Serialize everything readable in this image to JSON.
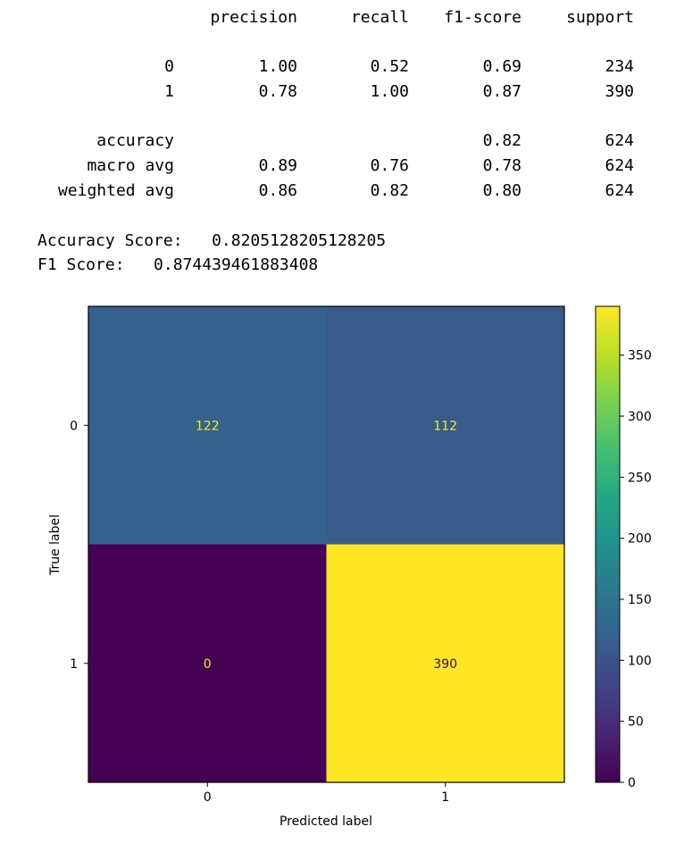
{
  "report": {
    "headers": [
      "precision",
      "recall",
      "f1-score",
      "support"
    ],
    "rows": [
      {
        "label": "0",
        "precision": "1.00",
        "recall": "0.52",
        "f1": "0.69",
        "support": "234"
      },
      {
        "label": "1",
        "precision": "0.78",
        "recall": "1.00",
        "f1": "0.87",
        "support": "390"
      },
      {
        "label": "accuracy",
        "precision": "",
        "recall": "",
        "f1": "0.82",
        "support": "624"
      },
      {
        "label": "macro avg",
        "precision": "0.89",
        "recall": "0.76",
        "f1": "0.78",
        "support": "624"
      },
      {
        "label": "weighted avg",
        "precision": "0.86",
        "recall": "0.82",
        "f1": "0.80",
        "support": "624"
      }
    ]
  },
  "scores": {
    "accuracy_line": "Accuracy Score:   0.8205128205128205",
    "f1_line": "F1 Score:   0.874439461883408"
  },
  "chart_data": {
    "type": "heatmap",
    "title": "",
    "xlabel": "Predicted label",
    "ylabel": "True label",
    "x_categories": [
      "0",
      "1"
    ],
    "y_categories": [
      "0",
      "1"
    ],
    "values": [
      [
        122,
        112
      ],
      [
        0,
        390
      ]
    ],
    "cell_labels": [
      [
        "122",
        "112"
      ],
      [
        "0",
        "390"
      ]
    ],
    "colormap": "viridis",
    "colorbar": {
      "range": [
        0,
        390
      ],
      "ticks": [
        0,
        50,
        100,
        150,
        200,
        250,
        300,
        350
      ],
      "tick_labels": [
        "0",
        "50",
        "100",
        "150",
        "200",
        "250",
        "300",
        "350"
      ]
    },
    "colors": {
      "low": "#440154",
      "high": "#fde725",
      "label_on_low": "#fde725",
      "label_on_high": "#440154"
    },
    "grid": false
  }
}
